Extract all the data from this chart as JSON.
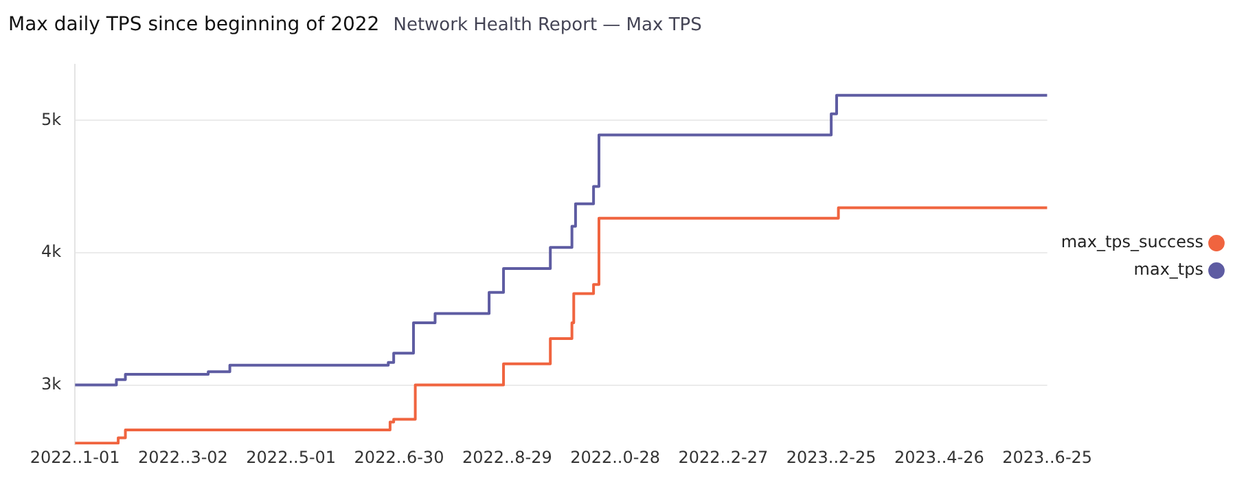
{
  "chart_data": {
    "type": "step",
    "title": "Max daily TPS since beginning of 2022",
    "subtitle": "Network Health Report — Max TPS",
    "series": [
      {
        "name": "max_tps_success",
        "color": "#f0643f",
        "x": [
          "2022-01-01",
          "2022-01-25",
          "2022-01-29",
          "2022-06-25",
          "2022-06-27",
          "2022-07-09",
          "2022-08-27",
          "2022-09-22",
          "2022-10-04",
          "2022-10-05",
          "2022-10-16",
          "2022-10-19",
          "2023-03-01",
          "2023-06-25"
        ],
        "values": [
          2560,
          2600,
          2660,
          2720,
          2740,
          3000,
          3160,
          3350,
          3470,
          3690,
          3760,
          4260,
          4340,
          4340
        ]
      },
      {
        "name": "max_tps",
        "color": "#5e5ca2",
        "x": [
          "2022-01-01",
          "2022-01-24",
          "2022-01-29",
          "2022-03-16",
          "2022-03-28",
          "2022-06-24",
          "2022-06-27",
          "2022-07-08",
          "2022-07-20",
          "2022-08-19",
          "2022-08-27",
          "2022-09-22",
          "2022-10-04",
          "2022-10-06",
          "2022-10-16",
          "2022-10-19",
          "2023-02-25",
          "2023-02-28",
          "2023-06-25"
        ],
        "values": [
          3000,
          3040,
          3080,
          3100,
          3150,
          3170,
          3240,
          3470,
          3540,
          3700,
          3880,
          4040,
          4200,
          4370,
          4500,
          4890,
          5050,
          5190,
          5190
        ]
      }
    ],
    "xlim": [
      "2022-01-01",
      "2023-06-25"
    ],
    "xticks": [
      {
        "value": "2022-01-01",
        "label": "2022..1-01"
      },
      {
        "value": "2022-03-02",
        "label": "2022..3-02"
      },
      {
        "value": "2022-05-01",
        "label": "2022..5-01"
      },
      {
        "value": "2022-06-30",
        "label": "2022..6-30"
      },
      {
        "value": "2022-08-29",
        "label": "2022..8-29"
      },
      {
        "value": "2022-10-28",
        "label": "2022..0-28"
      },
      {
        "value": "2022-12-27",
        "label": "2022..2-27"
      },
      {
        "value": "2023-02-25",
        "label": "2023..2-25"
      },
      {
        "value": "2023-04-26",
        "label": "2023..4-26"
      },
      {
        "value": "2023-06-25",
        "label": "2023..6-25"
      }
    ],
    "ylim": [
      2550,
      5420
    ],
    "yticks": [
      {
        "value": 3000,
        "label": "3k"
      },
      {
        "value": 4000,
        "label": "4k"
      },
      {
        "value": 5000,
        "label": "5k"
      }
    ],
    "grid": "y",
    "legend": "right",
    "marker": "none",
    "line_style": "solid"
  }
}
